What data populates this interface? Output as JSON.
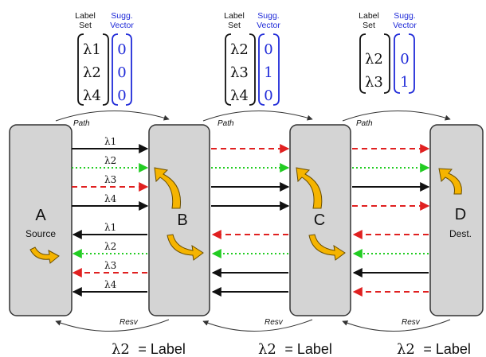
{
  "headers": {
    "label_set": [
      "Label",
      "Set"
    ],
    "sugg_vector": [
      "Sugg.",
      "Vector"
    ]
  },
  "hops": [
    {
      "labels": [
        "λ1",
        "λ2",
        "λ4"
      ],
      "vector": [
        "0",
        "0",
        "0"
      ]
    },
    {
      "labels": [
        "λ2",
        "λ3",
        "λ4"
      ],
      "vector": [
        "0",
        "1",
        "0"
      ]
    },
    {
      "labels": [
        "λ2",
        "λ3"
      ],
      "vector": [
        "0",
        "1"
      ]
    }
  ],
  "path_label": "Path",
  "resv_label": "Resv",
  "nodes": [
    {
      "letter": "A",
      "role": "Source"
    },
    {
      "letter": "B",
      "role": ""
    },
    {
      "letter": "C",
      "role": ""
    },
    {
      "letter": "D",
      "role": "Dest."
    }
  ],
  "wavelength_labels": [
    "λ1",
    "λ2",
    "λ3",
    "λ4",
    "λ1",
    "λ2",
    "λ3",
    "λ4"
  ],
  "footer": {
    "lambda": "λ2",
    "text": "= Label"
  },
  "colors": {
    "used": "#111111",
    "available": "#22cc22",
    "blocked": "#e02020",
    "node_fill": "#d4d4d4",
    "arrow": "#f5b400"
  }
}
